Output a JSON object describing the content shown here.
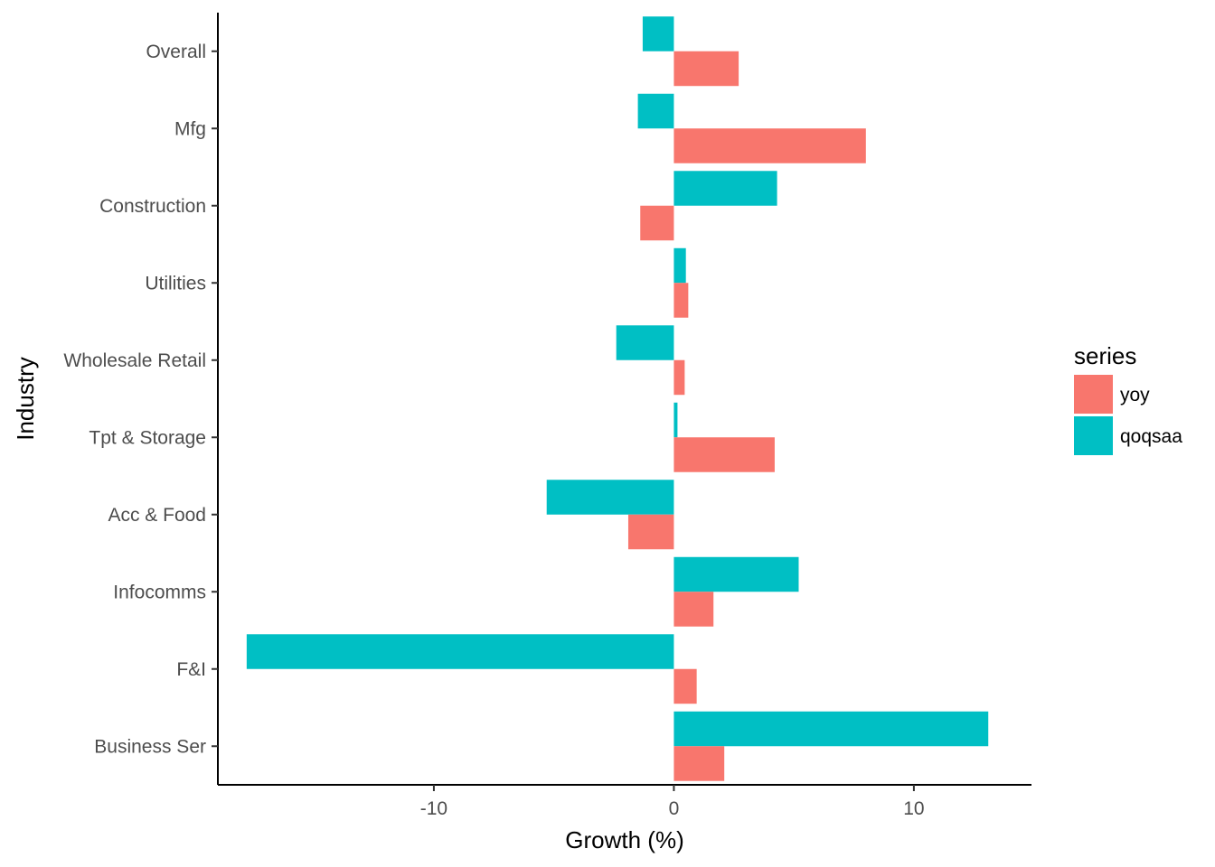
{
  "chart_data": {
    "type": "bar",
    "orientation": "horizontal",
    "categories": [
      "Overall",
      "Mfg",
      "Construction",
      "Utilities",
      "Wholesale Retail",
      "Tpt & Storage",
      "Acc & Food",
      "Infocomms",
      "F&I",
      "Business Ser"
    ],
    "series": [
      {
        "name": "yoy",
        "color": "#F8766D",
        "values": [
          2.7,
          8.0,
          -1.4,
          0.6,
          0.45,
          4.2,
          -1.9,
          1.65,
          0.95,
          2.1
        ]
      },
      {
        "name": "qoqsaa",
        "color": "#00BFC4",
        "values": [
          -1.3,
          -1.5,
          4.3,
          0.5,
          -2.4,
          0.15,
          -5.3,
          5.2,
          -17.8,
          13.1
        ]
      }
    ],
    "xlabel": "Growth (%)",
    "ylabel": "Industry",
    "xlim": [
      -19.0,
      14.9
    ],
    "xticks": [
      -10,
      0,
      10
    ],
    "xtick_labels": [
      "-10",
      "0",
      "10"
    ],
    "grid": false,
    "legend": {
      "title": "series",
      "position": "right",
      "entries": [
        "yoy",
        "qoqsaa"
      ]
    }
  }
}
